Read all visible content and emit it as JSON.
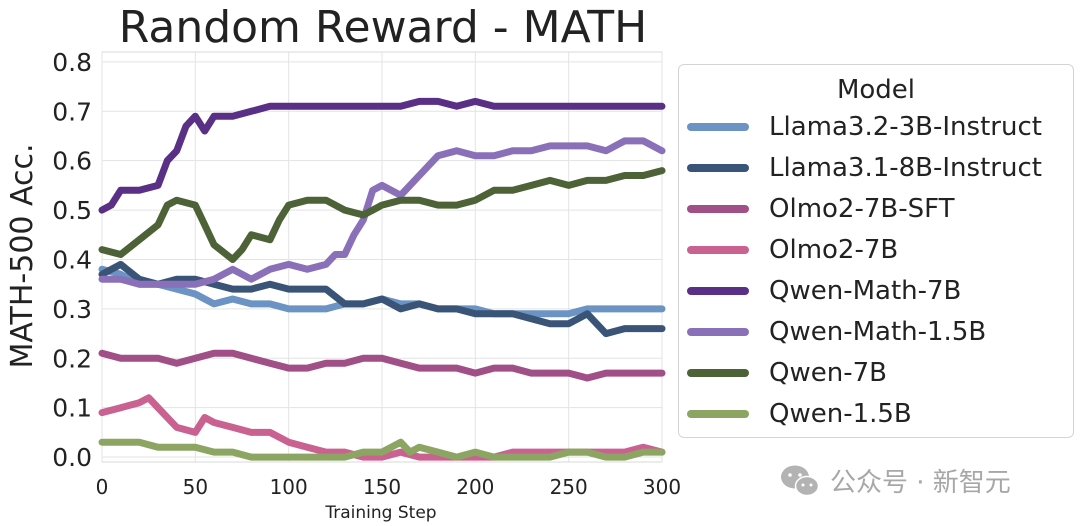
{
  "chart_data": {
    "type": "line",
    "title": "Random Reward - MATH",
    "xlabel": "Training Step",
    "ylabel": "MATH-500 Acc.",
    "xlim": [
      0,
      300
    ],
    "ylim": [
      -0.01,
      0.82
    ],
    "xticks": [
      0,
      50,
      100,
      150,
      200,
      250,
      300
    ],
    "yticks": [
      0.0,
      0.1,
      0.2,
      0.3,
      0.4,
      0.5,
      0.6,
      0.7,
      0.8
    ],
    "xtick_labels": [
      "0",
      "50",
      "100",
      "150",
      "200",
      "250",
      "300"
    ],
    "ytick_labels": [
      "0.0",
      "0.1",
      "0.2",
      "0.3",
      "0.4",
      "0.5",
      "0.6",
      "0.7",
      "0.8"
    ],
    "grid": true,
    "legend_title": "Model",
    "legend_position": "right",
    "series": [
      {
        "name": "Llama3.2-3B-Instruct",
        "color": "#6b93c4",
        "points": [
          [
            0,
            0.38
          ],
          [
            10,
            0.37
          ],
          [
            20,
            0.35
          ],
          [
            30,
            0.35
          ],
          [
            40,
            0.34
          ],
          [
            50,
            0.33
          ],
          [
            60,
            0.31
          ],
          [
            70,
            0.32
          ],
          [
            80,
            0.31
          ],
          [
            90,
            0.31
          ],
          [
            100,
            0.3
          ],
          [
            110,
            0.3
          ],
          [
            120,
            0.3
          ],
          [
            130,
            0.31
          ],
          [
            140,
            0.31
          ],
          [
            150,
            0.32
          ],
          [
            160,
            0.31
          ],
          [
            170,
            0.31
          ],
          [
            180,
            0.3
          ],
          [
            190,
            0.3
          ],
          [
            200,
            0.3
          ],
          [
            210,
            0.29
          ],
          [
            220,
            0.29
          ],
          [
            230,
            0.29
          ],
          [
            240,
            0.29
          ],
          [
            250,
            0.29
          ],
          [
            260,
            0.3
          ],
          [
            270,
            0.3
          ],
          [
            280,
            0.3
          ],
          [
            290,
            0.3
          ],
          [
            300,
            0.3
          ]
        ]
      },
      {
        "name": "Llama3.1-8B-Instruct",
        "color": "#3a5478",
        "points": [
          [
            0,
            0.37
          ],
          [
            10,
            0.39
          ],
          [
            20,
            0.36
          ],
          [
            30,
            0.35
          ],
          [
            40,
            0.36
          ],
          [
            50,
            0.36
          ],
          [
            60,
            0.35
          ],
          [
            70,
            0.34
          ],
          [
            80,
            0.34
          ],
          [
            90,
            0.35
          ],
          [
            100,
            0.34
          ],
          [
            110,
            0.34
          ],
          [
            120,
            0.34
          ],
          [
            130,
            0.31
          ],
          [
            140,
            0.31
          ],
          [
            150,
            0.32
          ],
          [
            160,
            0.3
          ],
          [
            170,
            0.31
          ],
          [
            180,
            0.3
          ],
          [
            190,
            0.3
          ],
          [
            200,
            0.29
          ],
          [
            210,
            0.29
          ],
          [
            220,
            0.29
          ],
          [
            230,
            0.28
          ],
          [
            240,
            0.27
          ],
          [
            250,
            0.27
          ],
          [
            260,
            0.29
          ],
          [
            270,
            0.25
          ],
          [
            280,
            0.26
          ],
          [
            290,
            0.26
          ],
          [
            300,
            0.26
          ]
        ]
      },
      {
        "name": "Olmo2-7B-SFT",
        "color": "#a04f87",
        "points": [
          [
            0,
            0.21
          ],
          [
            10,
            0.2
          ],
          [
            20,
            0.2
          ],
          [
            30,
            0.2
          ],
          [
            40,
            0.19
          ],
          [
            50,
            0.2
          ],
          [
            60,
            0.21
          ],
          [
            70,
            0.21
          ],
          [
            80,
            0.2
          ],
          [
            90,
            0.19
          ],
          [
            100,
            0.18
          ],
          [
            110,
            0.18
          ],
          [
            120,
            0.19
          ],
          [
            130,
            0.19
          ],
          [
            140,
            0.2
          ],
          [
            150,
            0.2
          ],
          [
            160,
            0.19
          ],
          [
            170,
            0.18
          ],
          [
            180,
            0.18
          ],
          [
            190,
            0.18
          ],
          [
            200,
            0.17
          ],
          [
            210,
            0.18
          ],
          [
            220,
            0.18
          ],
          [
            230,
            0.17
          ],
          [
            240,
            0.17
          ],
          [
            250,
            0.17
          ],
          [
            260,
            0.16
          ],
          [
            270,
            0.17
          ],
          [
            280,
            0.17
          ],
          [
            290,
            0.17
          ],
          [
            300,
            0.17
          ]
        ]
      },
      {
        "name": "Olmo2-7B",
        "color": "#c96290",
        "points": [
          [
            0,
            0.09
          ],
          [
            10,
            0.1
          ],
          [
            20,
            0.11
          ],
          [
            25,
            0.12
          ],
          [
            30,
            0.1
          ],
          [
            40,
            0.06
          ],
          [
            50,
            0.05
          ],
          [
            55,
            0.08
          ],
          [
            60,
            0.07
          ],
          [
            70,
            0.06
          ],
          [
            80,
            0.05
          ],
          [
            90,
            0.05
          ],
          [
            100,
            0.03
          ],
          [
            110,
            0.02
          ],
          [
            120,
            0.01
          ],
          [
            130,
            0.01
          ],
          [
            140,
            0.0
          ],
          [
            150,
            0.0
          ],
          [
            160,
            0.01
          ],
          [
            170,
            0.0
          ],
          [
            180,
            0.0
          ],
          [
            190,
            0.0
          ],
          [
            200,
            0.0
          ],
          [
            210,
            0.0
          ],
          [
            220,
            0.01
          ],
          [
            230,
            0.01
          ],
          [
            240,
            0.01
          ],
          [
            250,
            0.01
          ],
          [
            260,
            0.01
          ],
          [
            270,
            0.01
          ],
          [
            280,
            0.01
          ],
          [
            290,
            0.02
          ],
          [
            300,
            0.01
          ]
        ]
      },
      {
        "name": "Qwen-Math-7B",
        "color": "#5a2f86",
        "points": [
          [
            0,
            0.5
          ],
          [
            5,
            0.51
          ],
          [
            10,
            0.54
          ],
          [
            20,
            0.54
          ],
          [
            30,
            0.55
          ],
          [
            35,
            0.6
          ],
          [
            40,
            0.62
          ],
          [
            45,
            0.67
          ],
          [
            50,
            0.69
          ],
          [
            55,
            0.66
          ],
          [
            60,
            0.69
          ],
          [
            70,
            0.69
          ],
          [
            80,
            0.7
          ],
          [
            90,
            0.71
          ],
          [
            100,
            0.71
          ],
          [
            110,
            0.71
          ],
          [
            120,
            0.71
          ],
          [
            130,
            0.71
          ],
          [
            140,
            0.71
          ],
          [
            150,
            0.71
          ],
          [
            160,
            0.71
          ],
          [
            170,
            0.72
          ],
          [
            180,
            0.72
          ],
          [
            190,
            0.71
          ],
          [
            200,
            0.72
          ],
          [
            210,
            0.71
          ],
          [
            220,
            0.71
          ],
          [
            230,
            0.71
          ],
          [
            240,
            0.71
          ],
          [
            250,
            0.71
          ],
          [
            260,
            0.71
          ],
          [
            270,
            0.71
          ],
          [
            280,
            0.71
          ],
          [
            290,
            0.71
          ],
          [
            300,
            0.71
          ]
        ]
      },
      {
        "name": "Qwen-Math-1.5B",
        "color": "#8a70b8",
        "points": [
          [
            0,
            0.36
          ],
          [
            10,
            0.36
          ],
          [
            20,
            0.35
          ],
          [
            30,
            0.35
          ],
          [
            40,
            0.35
          ],
          [
            50,
            0.35
          ],
          [
            60,
            0.36
          ],
          [
            70,
            0.38
          ],
          [
            80,
            0.36
          ],
          [
            90,
            0.38
          ],
          [
            100,
            0.39
          ],
          [
            110,
            0.38
          ],
          [
            120,
            0.39
          ],
          [
            125,
            0.41
          ],
          [
            130,
            0.41
          ],
          [
            135,
            0.45
          ],
          [
            140,
            0.48
          ],
          [
            145,
            0.54
          ],
          [
            150,
            0.55
          ],
          [
            160,
            0.53
          ],
          [
            170,
            0.57
          ],
          [
            180,
            0.61
          ],
          [
            190,
            0.62
          ],
          [
            200,
            0.61
          ],
          [
            210,
            0.61
          ],
          [
            220,
            0.62
          ],
          [
            230,
            0.62
          ],
          [
            240,
            0.63
          ],
          [
            250,
            0.63
          ],
          [
            260,
            0.63
          ],
          [
            270,
            0.62
          ],
          [
            280,
            0.64
          ],
          [
            290,
            0.64
          ],
          [
            300,
            0.62
          ]
        ]
      },
      {
        "name": "Qwen-7B",
        "color": "#4e6238",
        "points": [
          [
            0,
            0.42
          ],
          [
            10,
            0.41
          ],
          [
            20,
            0.44
          ],
          [
            30,
            0.47
          ],
          [
            35,
            0.51
          ],
          [
            40,
            0.52
          ],
          [
            50,
            0.51
          ],
          [
            55,
            0.47
          ],
          [
            60,
            0.43
          ],
          [
            70,
            0.4
          ],
          [
            75,
            0.42
          ],
          [
            80,
            0.45
          ],
          [
            90,
            0.44
          ],
          [
            95,
            0.48
          ],
          [
            100,
            0.51
          ],
          [
            110,
            0.52
          ],
          [
            120,
            0.52
          ],
          [
            130,
            0.5
          ],
          [
            140,
            0.49
          ],
          [
            145,
            0.5
          ],
          [
            150,
            0.51
          ],
          [
            160,
            0.52
          ],
          [
            170,
            0.52
          ],
          [
            180,
            0.51
          ],
          [
            190,
            0.51
          ],
          [
            200,
            0.52
          ],
          [
            210,
            0.54
          ],
          [
            220,
            0.54
          ],
          [
            230,
            0.55
          ],
          [
            240,
            0.56
          ],
          [
            250,
            0.55
          ],
          [
            260,
            0.56
          ],
          [
            270,
            0.56
          ],
          [
            280,
            0.57
          ],
          [
            290,
            0.57
          ],
          [
            300,
            0.58
          ]
        ]
      },
      {
        "name": "Qwen-1.5B",
        "color": "#8da562",
        "points": [
          [
            0,
            0.03
          ],
          [
            10,
            0.03
          ],
          [
            20,
            0.03
          ],
          [
            30,
            0.02
          ],
          [
            40,
            0.02
          ],
          [
            50,
            0.02
          ],
          [
            60,
            0.01
          ],
          [
            70,
            0.01
          ],
          [
            80,
            0.0
          ],
          [
            90,
            0.0
          ],
          [
            100,
            0.0
          ],
          [
            110,
            0.0
          ],
          [
            120,
            0.0
          ],
          [
            130,
            0.0
          ],
          [
            140,
            0.01
          ],
          [
            150,
            0.01
          ],
          [
            155,
            0.02
          ],
          [
            160,
            0.03
          ],
          [
            165,
            0.01
          ],
          [
            170,
            0.02
          ],
          [
            180,
            0.01
          ],
          [
            190,
            0.0
          ],
          [
            200,
            0.01
          ],
          [
            210,
            0.0
          ],
          [
            220,
            0.0
          ],
          [
            230,
            0.0
          ],
          [
            240,
            0.0
          ],
          [
            250,
            0.01
          ],
          [
            260,
            0.01
          ],
          [
            270,
            0.0
          ],
          [
            280,
            0.0
          ],
          [
            290,
            0.01
          ],
          [
            300,
            0.01
          ]
        ]
      }
    ]
  },
  "watermark": {
    "icon": "wechat-icon",
    "text": "公众号 · 新智元"
  }
}
